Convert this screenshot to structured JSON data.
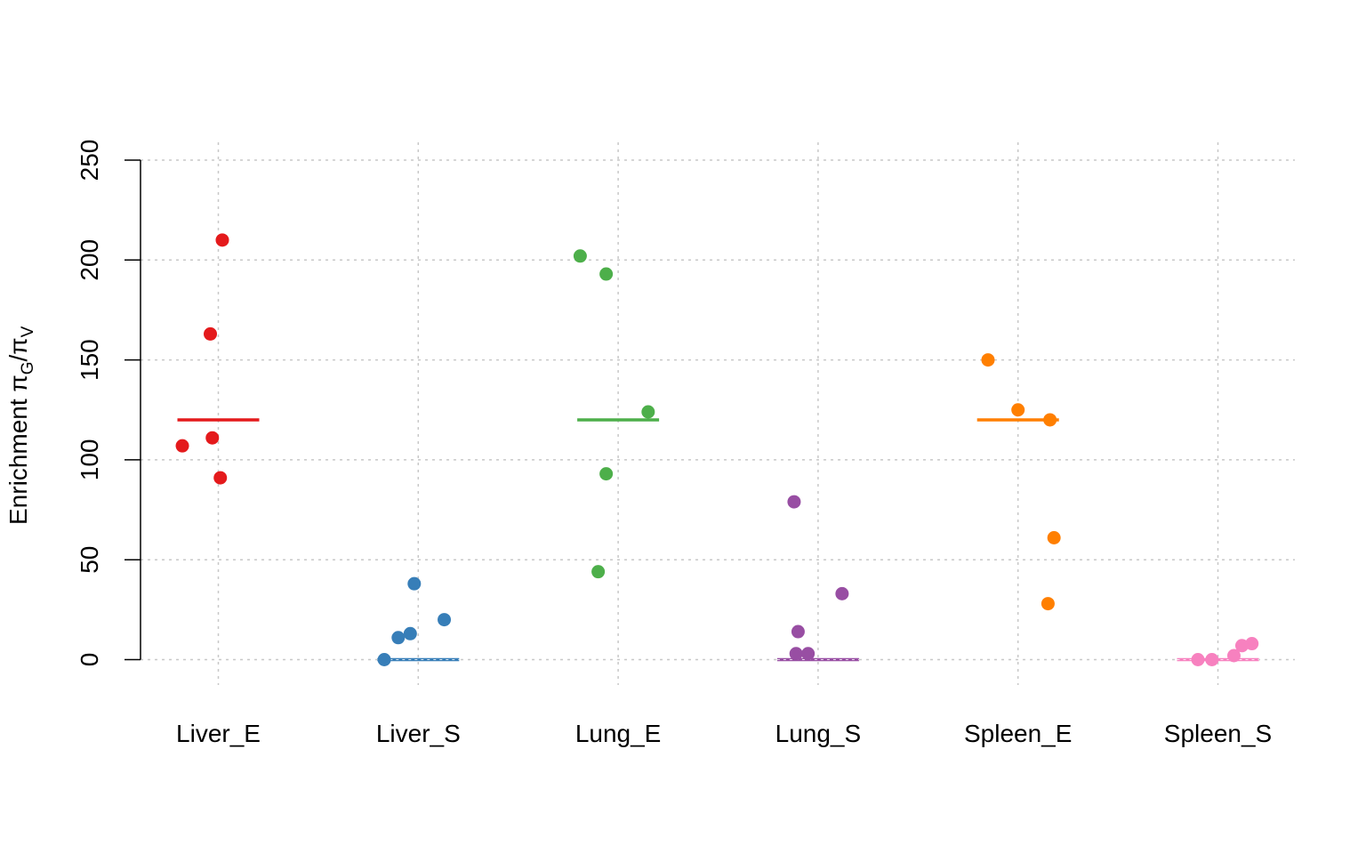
{
  "chart_data": {
    "type": "scatter",
    "title": "",
    "xlabel": "",
    "ylabel": {
      "prefix": "Enrichment ",
      "numerator_symbol": "π",
      "numerator_sub": "G",
      "separator": "/",
      "denominator_symbol": "π",
      "denominator_sub": "V"
    },
    "ylim": [
      -20,
      255
    ],
    "yticks": [
      "0",
      "50",
      "100",
      "150",
      "200",
      "250"
    ],
    "grid": true,
    "categories": [
      "Liver_E",
      "Liver_S",
      "Lung_E",
      "Lung_S",
      "Spleen_E",
      "Spleen_S"
    ],
    "series": [
      {
        "category": "Liver_E",
        "color": "#e41a1c",
        "summary_line": 120,
        "points": [
          {
            "x_jitter": 0.02,
            "y": 210
          },
          {
            "x_jitter": -0.04,
            "y": 163
          },
          {
            "x_jitter": -0.03,
            "y": 111
          },
          {
            "x_jitter": -0.18,
            "y": 107
          },
          {
            "x_jitter": 0.01,
            "y": 91
          }
        ]
      },
      {
        "category": "Liver_S",
        "color": "#377eb8",
        "summary_line": 0,
        "points": [
          {
            "x_jitter": -0.02,
            "y": 38
          },
          {
            "x_jitter": 0.13,
            "y": 20
          },
          {
            "x_jitter": -0.04,
            "y": 13
          },
          {
            "x_jitter": -0.1,
            "y": 11
          },
          {
            "x_jitter": -0.17,
            "y": 0
          }
        ]
      },
      {
        "category": "Lung_E",
        "color": "#4daf4a",
        "summary_line": 120,
        "points": [
          {
            "x_jitter": -0.19,
            "y": 202
          },
          {
            "x_jitter": -0.06,
            "y": 193
          },
          {
            "x_jitter": 0.15,
            "y": 124
          },
          {
            "x_jitter": -0.06,
            "y": 93
          },
          {
            "x_jitter": -0.1,
            "y": 44
          }
        ]
      },
      {
        "category": "Lung_S",
        "color": "#984ea3",
        "summary_line": 0,
        "points": [
          {
            "x_jitter": -0.12,
            "y": 79
          },
          {
            "x_jitter": 0.12,
            "y": 33
          },
          {
            "x_jitter": -0.1,
            "y": 14
          },
          {
            "x_jitter": -0.11,
            "y": 3
          },
          {
            "x_jitter": -0.05,
            "y": 3
          }
        ]
      },
      {
        "category": "Spleen_E",
        "color": "#ff7f00",
        "summary_line": 120,
        "points": [
          {
            "x_jitter": -0.15,
            "y": 150
          },
          {
            "x_jitter": 0.0,
            "y": 125
          },
          {
            "x_jitter": 0.16,
            "y": 120
          },
          {
            "x_jitter": 0.18,
            "y": 61
          },
          {
            "x_jitter": 0.15,
            "y": 28
          }
        ]
      },
      {
        "category": "Spleen_S",
        "color": "#f781bf",
        "summary_line": 0,
        "points": [
          {
            "x_jitter": 0.17,
            "y": 8
          },
          {
            "x_jitter": 0.12,
            "y": 7
          },
          {
            "x_jitter": 0.08,
            "y": 2
          },
          {
            "x_jitter": -0.1,
            "y": 0
          },
          {
            "x_jitter": -0.03,
            "y": 0
          }
        ]
      }
    ]
  }
}
